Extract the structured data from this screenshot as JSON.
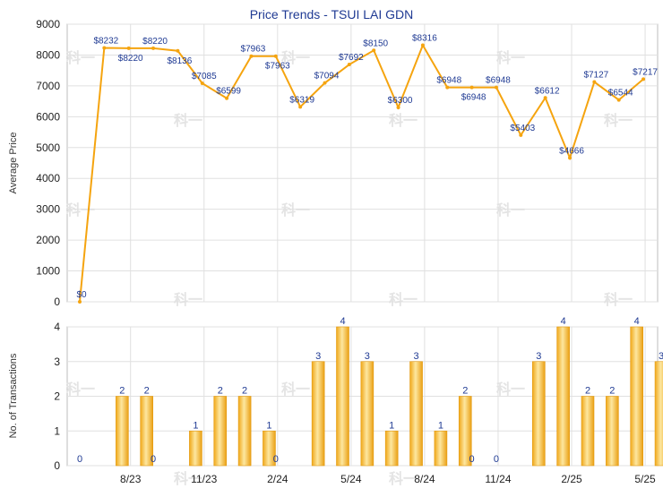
{
  "chart_data": [
    {
      "type": "line",
      "title": "Price Trends - TSUI LAI GDN",
      "ylabel": "Average Price",
      "ylim": [
        0,
        9000
      ],
      "yticks": [
        "0",
        "1000",
        "2000",
        "3000",
        "4000",
        "5000",
        "6000",
        "7000",
        "8000",
        "9000"
      ],
      "grid": true,
      "color": "#f5a40f",
      "series": [
        {
          "values": [
            0,
            8232,
            8220,
            8220,
            8136,
            7085,
            6599,
            7963,
            7963,
            6319,
            7094,
            7692,
            8150,
            6300,
            8316,
            6948,
            6948,
            6948,
            5403,
            6612,
            4666,
            7127,
            6544,
            7217
          ],
          "labels": [
            "$0",
            "$8232",
            "$8220",
            "$8220",
            "$8136",
            "$7085",
            "$6599",
            "$7963",
            "$7963",
            "$6319",
            "$7094",
            "$7692",
            "$8150",
            "$6300",
            "$8316",
            "$6948",
            "$6948",
            "$6948",
            "$5403",
            "$6612",
            "$4666",
            "$7127",
            "$6544",
            "$7217"
          ]
        }
      ]
    },
    {
      "type": "bar",
      "ylabel": "No. of Transactions",
      "ylim": [
        0,
        4
      ],
      "yticks": [
        "0",
        "1",
        "2",
        "3",
        "4"
      ],
      "grid": true,
      "color": "#f5a40f",
      "values": [
        0,
        2,
        2,
        0,
        1,
        2,
        2,
        1,
        0,
        3,
        4,
        3,
        1,
        3,
        1,
        2,
        0,
        0,
        3,
        4,
        2,
        2,
        4,
        3
      ],
      "labels": [
        "0",
        "2",
        "2",
        "0",
        "1",
        "2",
        "2",
        "1",
        "0",
        "3",
        "4",
        "3",
        "1",
        "3",
        "1",
        "2",
        "0",
        "0",
        "3",
        "4",
        "2",
        "2",
        "4",
        "3"
      ],
      "xticks": [
        {
          "index": 2,
          "label": "8/23"
        },
        {
          "index": 5,
          "label": "11/23"
        },
        {
          "index": 8,
          "label": "2/24"
        },
        {
          "index": 11,
          "label": "5/24"
        },
        {
          "index": 14,
          "label": "8/24"
        },
        {
          "index": 17,
          "label": "11/24"
        },
        {
          "index": 20,
          "label": "2/25"
        },
        {
          "index": 23,
          "label": "5/25"
        }
      ]
    }
  ],
  "watermark": "科一"
}
